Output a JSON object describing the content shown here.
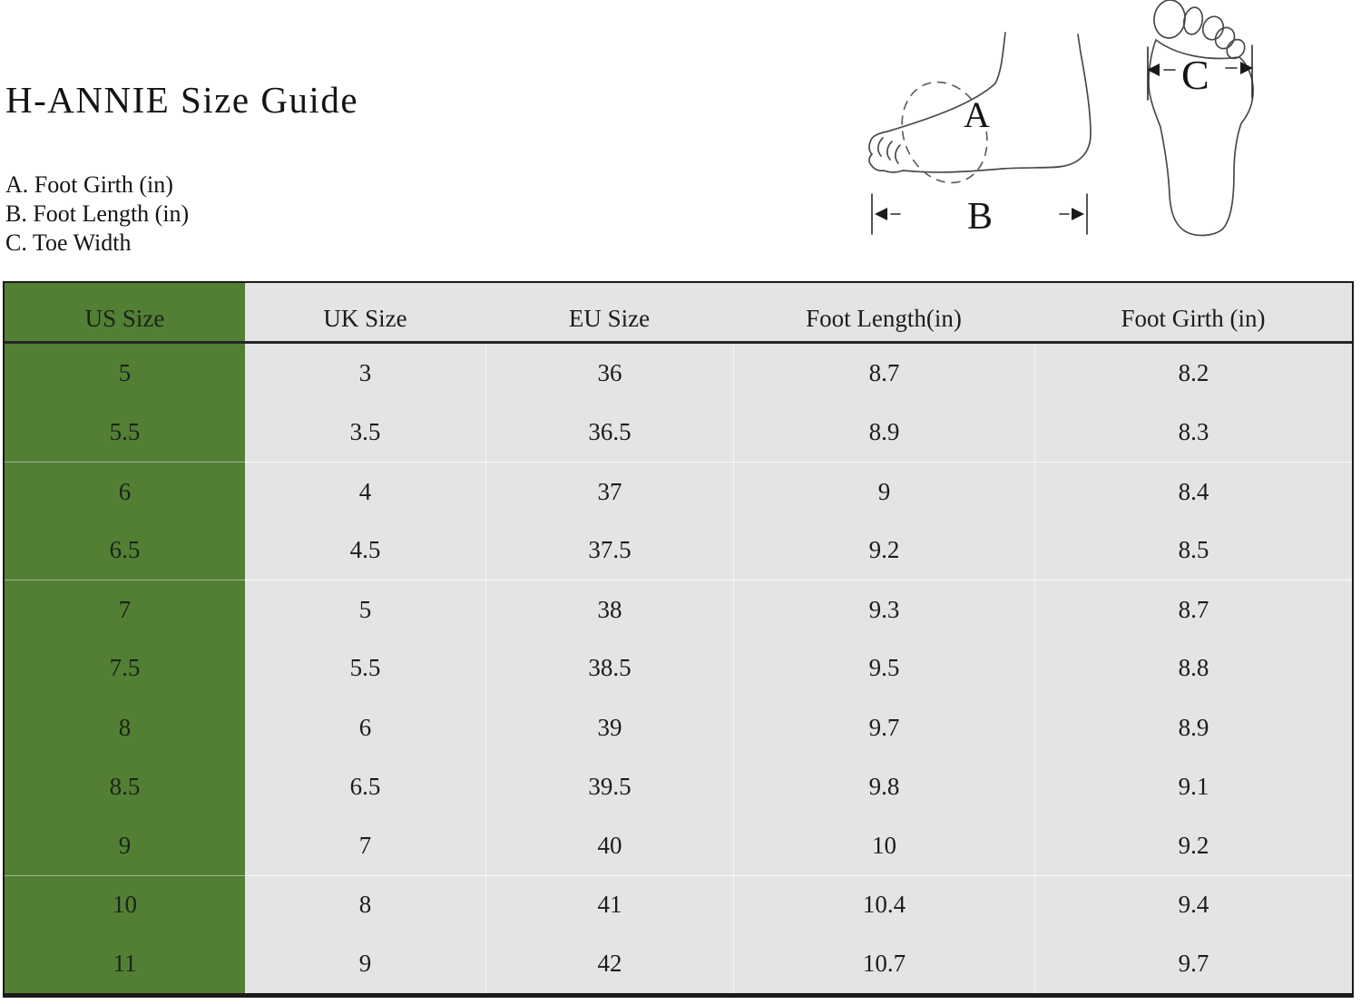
{
  "title": "H-ANNIE Size Guide",
  "legend": [
    "A. Foot Girth (in)",
    "B. Foot Length (in)",
    "C. Toe Width"
  ],
  "diagram_labels": {
    "girth": "A",
    "length": "B",
    "toe_width": "C"
  },
  "colors": {
    "green_column": "#537f35",
    "table_background": "#e4e4e4",
    "table_border": "#1b1b1b"
  },
  "table": {
    "headers": [
      "US Size",
      "UK Size",
      "EU Size",
      "Foot Length(in)",
      "Foot Girth (in)"
    ],
    "rows": [
      [
        "5",
        "3",
        "36",
        "8.7",
        "8.2"
      ],
      [
        "5.5",
        "3.5",
        "36.5",
        "8.9",
        "8.3"
      ],
      [
        "6",
        "4",
        "37",
        "9",
        "8.4"
      ],
      [
        "6.5",
        "4.5",
        "37.5",
        "9.2",
        "8.5"
      ],
      [
        "7",
        "5",
        "38",
        "9.3",
        "8.7"
      ],
      [
        "7.5",
        "5.5",
        "38.5",
        "9.5",
        "8.8"
      ],
      [
        "8",
        "6",
        "39",
        "9.7",
        "8.9"
      ],
      [
        "8.5",
        "6.5",
        "39.5",
        "9.8",
        "9.1"
      ],
      [
        "9",
        "7",
        "40",
        "10",
        "9.2"
      ],
      [
        "10",
        "8",
        "41",
        "10.4",
        "9.4"
      ],
      [
        "11",
        "9",
        "42",
        "10.7",
        "9.7"
      ]
    ]
  },
  "chart_data": {
    "type": "table",
    "title": "H-ANNIE Size Guide",
    "columns": [
      "US Size",
      "UK Size",
      "EU Size",
      "Foot Length(in)",
      "Foot Girth (in)"
    ],
    "rows": [
      [
        "5",
        "3",
        "36",
        "8.7",
        "8.2"
      ],
      [
        "5.5",
        "3.5",
        "36.5",
        "8.9",
        "8.3"
      ],
      [
        "6",
        "4",
        "37",
        "9",
        "8.4"
      ],
      [
        "6.5",
        "4.5",
        "37.5",
        "9.2",
        "8.5"
      ],
      [
        "7",
        "5",
        "38",
        "9.3",
        "8.7"
      ],
      [
        "7.5",
        "5.5",
        "38.5",
        "9.5",
        "8.8"
      ],
      [
        "8",
        "6",
        "39",
        "9.7",
        "8.9"
      ],
      [
        "8.5",
        "6.5",
        "39.5",
        "9.8",
        "9.1"
      ],
      [
        "9",
        "7",
        "40",
        "10",
        "9.2"
      ],
      [
        "10",
        "8",
        "41",
        "10.4",
        "9.4"
      ],
      [
        "11",
        "9",
        "42",
        "10.7",
        "9.7"
      ]
    ]
  }
}
